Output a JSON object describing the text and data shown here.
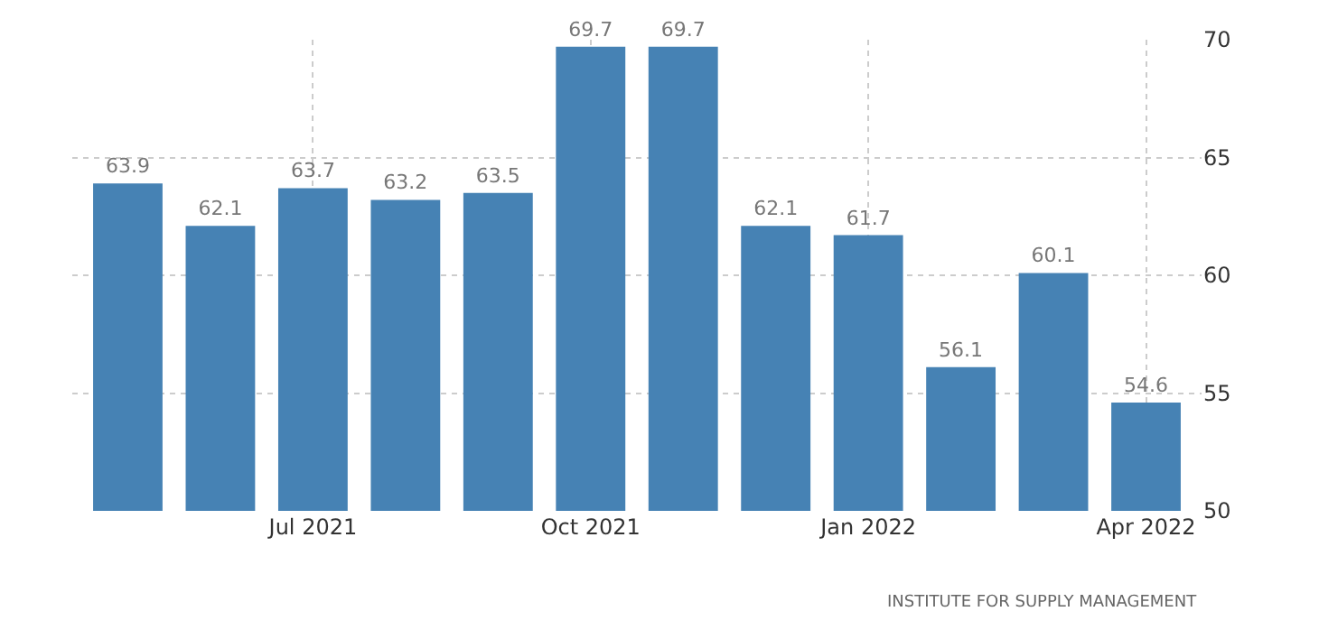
{
  "chart_data": {
    "type": "bar",
    "categories": [
      null,
      null,
      "Jul 2021",
      null,
      null,
      "Oct 2021",
      null,
      null,
      "Jan 2022",
      null,
      null,
      "Apr 2022"
    ],
    "values": [
      63.9,
      62.1,
      63.7,
      63.2,
      63.5,
      69.7,
      69.7,
      62.1,
      61.7,
      56.1,
      60.1,
      54.6
    ],
    "color": "#4682b4",
    "ylim": [
      50,
      70
    ],
    "yticks": [
      50,
      55,
      60,
      65,
      70
    ],
    "grid": true,
    "data_labels": true,
    "annotations": [
      "INSTITUTE FOR SUPPLY MANAGEMENT"
    ]
  }
}
